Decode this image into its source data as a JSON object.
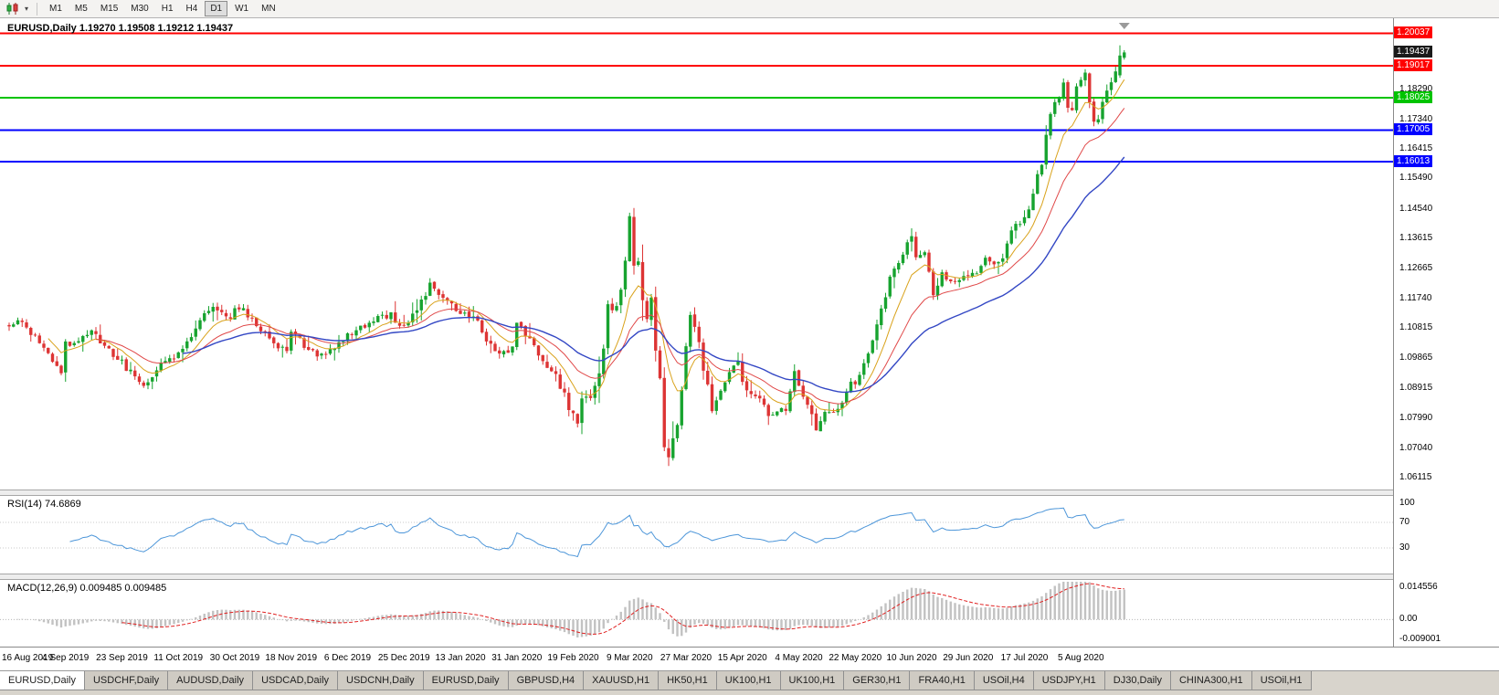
{
  "toolbar": {
    "chart_type_icon": "candlestick-chart-icon",
    "dropdown_icon": "chevron-down-icon",
    "timeframes": [
      {
        "label": "M1",
        "active": false
      },
      {
        "label": "M5",
        "active": false
      },
      {
        "label": "M15",
        "active": false
      },
      {
        "label": "M30",
        "active": false
      },
      {
        "label": "H1",
        "active": false
      },
      {
        "label": "H4",
        "active": false
      },
      {
        "label": "D1",
        "active": true
      },
      {
        "label": "W1",
        "active": false
      },
      {
        "label": "MN",
        "active": false
      }
    ]
  },
  "chart": {
    "title": "EURUSD,Daily 1.19270 1.19508 1.19212 1.19437",
    "current_price": "1.19437",
    "current_price_value": 1.19437,
    "price_top": 1.2045,
    "price_bottom": 1.0575,
    "y_ticks": [
      "1.18290",
      "1.17340",
      "1.16415",
      "1.15490",
      "1.14540",
      "1.13615",
      "1.12665",
      "1.11740",
      "1.10815",
      "1.09865",
      "1.08915",
      "1.07990",
      "1.07040",
      "1.06115"
    ],
    "hlines": [
      {
        "label": "1.20037",
        "value": 1.20037,
        "color": "#ff0000"
      },
      {
        "label": "1.19017",
        "value": 1.19017,
        "color": "#ff0000"
      },
      {
        "label": "1.18025",
        "value": 1.18025,
        "color": "#00c400"
      },
      {
        "label": "1.17005",
        "value": 1.17005,
        "color": "#0000ff"
      },
      {
        "label": "1.16013",
        "value": 1.16013,
        "color": "#0000ff"
      }
    ]
  },
  "rsi": {
    "label": "RSI(14) 74.6869",
    "value": 74.6869,
    "levels": [
      100,
      70,
      30
    ]
  },
  "macd": {
    "label": "MACD(12,26,9) 0.009485 0.009485",
    "scale_max": "0.014556",
    "scale_zero": "0.00",
    "scale_min": "-0.009001",
    "max_value": 0.014556,
    "min_value": -0.009001
  },
  "x_axis": {
    "label_every_bars": 13,
    "labels": [
      "16 Aug 2019",
      "4 Sep 2019",
      "23 Sep 2019",
      "11 Oct 2019",
      "30 Oct 2019",
      "18 Nov 2019",
      "6 Dec 2019",
      "25 Dec 2019",
      "13 Jan 2020",
      "31 Jan 2020",
      "19 Feb 2020",
      "9 Mar 2020",
      "27 Mar 2020",
      "15 Apr 2020",
      "4 May 2020",
      "22 May 2020",
      "10 Jun 2020",
      "29 Jun 2020",
      "17 Jul 2020",
      "5 Aug 2020"
    ]
  },
  "tabs": [
    {
      "label": "EURUSD,Daily",
      "active": true
    },
    {
      "label": "USDCHF,Daily",
      "active": false
    },
    {
      "label": "AUDUSD,Daily",
      "active": false
    },
    {
      "label": "USDCAD,Daily",
      "active": false
    },
    {
      "label": "USDCNH,Daily",
      "active": false
    },
    {
      "label": "EURUSD,Daily",
      "active": false
    },
    {
      "label": "GBPUSD,H4",
      "active": false
    },
    {
      "label": "XAUUSD,H1",
      "active": false
    },
    {
      "label": "HK50,H1",
      "active": false
    },
    {
      "label": "UK100,H1",
      "active": false
    },
    {
      "label": "UK100,H1",
      "active": false
    },
    {
      "label": "GER30,H1",
      "active": false
    },
    {
      "label": "FRA40,H1",
      "active": false
    },
    {
      "label": "USOil,H4",
      "active": false
    },
    {
      "label": "USDJPY,H1",
      "active": false
    },
    {
      "label": "DJ30,Daily",
      "active": false
    },
    {
      "label": "CHINA300,H1",
      "active": false
    },
    {
      "label": "USOil,H1",
      "active": false
    }
  ],
  "chart_data": {
    "type": "candlestick",
    "symbol": "EURUSD",
    "timeframe": "Daily",
    "current_bar": {
      "open": 1.1927,
      "high": 1.19508,
      "low": 1.19212,
      "close": 1.19437
    },
    "spike_bar": {
      "index": 256,
      "open": 1.1872,
      "high": 1.1966,
      "low": 1.1864,
      "close": 1.1934
    },
    "bars": 258,
    "bar_spacing": 4.75,
    "first_bar_x": 10,
    "anchors": [
      [
        0,
        1.109
      ],
      [
        2,
        1.11
      ],
      [
        4,
        1.108
      ],
      [
        6,
        1.1055
      ],
      [
        8,
        1.101
      ],
      [
        10,
        1.0975
      ],
      [
        12,
        1.094
      ],
      [
        13,
        1.1035
      ],
      [
        15,
        1.103
      ],
      [
        17,
        1.1065
      ],
      [
        19,
        1.1073
      ],
      [
        21,
        1.104
      ],
      [
        23,
        1.101
      ],
      [
        25,
        1.099
      ],
      [
        27,
        1.0955
      ],
      [
        29,
        1.093
      ],
      [
        31,
        1.09
      ],
      [
        33,
        1.093
      ],
      [
        35,
        1.0965
      ],
      [
        37,
        1.098
      ],
      [
        39,
        1.1
      ],
      [
        41,
        1.103
      ],
      [
        43,
        1.1075
      ],
      [
        45,
        1.113
      ],
      [
        47,
        1.1155
      ],
      [
        49,
        1.113
      ],
      [
        51,
        1.111
      ],
      [
        52,
        1.115
      ],
      [
        54,
        1.1135
      ],
      [
        56,
        1.111
      ],
      [
        58,
        1.1075
      ],
      [
        60,
        1.105
      ],
      [
        62,
        1.102
      ],
      [
        64,
        1.101
      ],
      [
        65,
        1.107
      ],
      [
        67,
        1.1045
      ],
      [
        69,
        1.101
      ],
      [
        71,
        1.0995
      ],
      [
        73,
        1.1005
      ],
      [
        75,
        1.1025
      ],
      [
        77,
        1.105
      ],
      [
        78,
        1.106
      ],
      [
        80,
        1.107
      ],
      [
        82,
        1.109
      ],
      [
        84,
        1.111
      ],
      [
        86,
        1.1115
      ],
      [
        88,
        1.112
      ],
      [
        90,
        1.1085
      ],
      [
        91,
        1.109
      ],
      [
        93,
        1.112
      ],
      [
        95,
        1.116
      ],
      [
        97,
        1.1215
      ],
      [
        99,
        1.119
      ],
      [
        101,
        1.1165
      ],
      [
        103,
        1.114
      ],
      [
        104,
        1.1134
      ],
      [
        106,
        1.112
      ],
      [
        108,
        1.11
      ],
      [
        110,
        1.103
      ],
      [
        112,
        1.1015
      ],
      [
        114,
        1.1005
      ],
      [
        116,
        1.102
      ],
      [
        117,
        1.1093
      ],
      [
        119,
        1.106
      ],
      [
        121,
        1.102
      ],
      [
        123,
        1.097
      ],
      [
        125,
        1.0945
      ],
      [
        127,
        1.0905
      ],
      [
        129,
        1.083
      ],
      [
        131,
        1.0785
      ],
      [
        132,
        1.0849
      ],
      [
        134,
        1.086
      ],
      [
        136,
        1.095
      ],
      [
        137,
        1.1026
      ],
      [
        138,
        1.1134
      ],
      [
        140,
        1.1135
      ],
      [
        142,
        1.1283
      ],
      [
        143,
        1.145
      ],
      [
        144,
        1.1281
      ],
      [
        145,
        1.127
      ],
      [
        146,
        1.1184
      ],
      [
        147,
        1.1105
      ],
      [
        148,
        1.118
      ],
      [
        149,
        1.0998
      ],
      [
        150,
        1.0915
      ],
      [
        151,
        1.0691
      ],
      [
        152,
        1.0694
      ],
      [
        153,
        1.0727
      ],
      [
        154,
        1.0789
      ],
      [
        155,
        1.088
      ],
      [
        156,
        1.1029
      ],
      [
        157,
        1.114
      ],
      [
        158,
        1.11
      ],
      [
        159,
        1.103
      ],
      [
        160,
        1.0965
      ],
      [
        162,
        1.0809
      ],
      [
        164,
        1.0893
      ],
      [
        166,
        1.0933
      ],
      [
        168,
        1.098
      ],
      [
        169,
        1.091
      ],
      [
        171,
        1.087
      ],
      [
        173,
        1.0858
      ],
      [
        175,
        1.081
      ],
      [
        177,
        1.0823
      ],
      [
        179,
        1.082
      ],
      [
        181,
        1.0955
      ],
      [
        182,
        1.0905
      ],
      [
        184,
        1.0845
      ],
      [
        186,
        1.0766
      ],
      [
        188,
        1.082
      ],
      [
        190,
        1.0815
      ],
      [
        192,
        1.085
      ],
      [
        194,
        1.0917
      ],
      [
        195,
        1.09
      ],
      [
        197,
        1.098
      ],
      [
        199,
        1.104
      ],
      [
        200,
        1.1101
      ],
      [
        201,
        1.1134
      ],
      [
        203,
        1.1234
      ],
      [
        205,
        1.129
      ],
      [
        207,
        1.134
      ],
      [
        208,
        1.1375
      ],
      [
        209,
        1.1296
      ],
      [
        211,
        1.1325
      ],
      [
        213,
        1.118
      ],
      [
        215,
        1.126
      ],
      [
        217,
        1.1218
      ],
      [
        219,
        1.1225
      ],
      [
        221,
        1.1243
      ],
      [
        223,
        1.1251
      ],
      [
        225,
        1.1308
      ],
      [
        227,
        1.1281
      ],
      [
        229,
        1.13
      ],
      [
        231,
        1.1396
      ],
      [
        233,
        1.1411
      ],
      [
        234,
        1.1425
      ],
      [
        235,
        1.1445
      ],
      [
        237,
        1.157
      ],
      [
        238,
        1.1598
      ],
      [
        240,
        1.175
      ],
      [
        243,
        1.1847
      ],
      [
        244,
        1.1778
      ],
      [
        245,
        1.1762
      ],
      [
        246,
        1.183
      ],
      [
        247,
        1.1863
      ],
      [
        248,
        1.1878
      ],
      [
        249,
        1.1787
      ],
      [
        250,
        1.1736
      ],
      [
        251,
        1.1739
      ],
      [
        252,
        1.1783
      ],
      [
        253,
        1.1813
      ],
      [
        254,
        1.1842
      ],
      [
        255,
        1.1872
      ],
      [
        256,
        1.1934
      ],
      [
        257,
        1.1944
      ]
    ],
    "vol_windows": [
      [
        120,
        137,
        1.5
      ],
      [
        138,
        162,
        2.2
      ],
      [
        238,
        257,
        1.25
      ]
    ],
    "ma_periods": {
      "fast": 9,
      "medium": 20,
      "slow": 40
    },
    "rsi_period": 14,
    "macd_periods": [
      12,
      26,
      9
    ],
    "colors": {
      "up": "#17a32f",
      "down": "#dd3434",
      "ma_fast": "#d9a21b",
      "ma_medium": "#e04848",
      "ma_slow": "#3347c4",
      "rsi_line": "#4d96d9",
      "macd_hist": "#c2c2c2",
      "macd_signal": "#e02020",
      "price_badge_bg": "#1a1a1a"
    }
  }
}
